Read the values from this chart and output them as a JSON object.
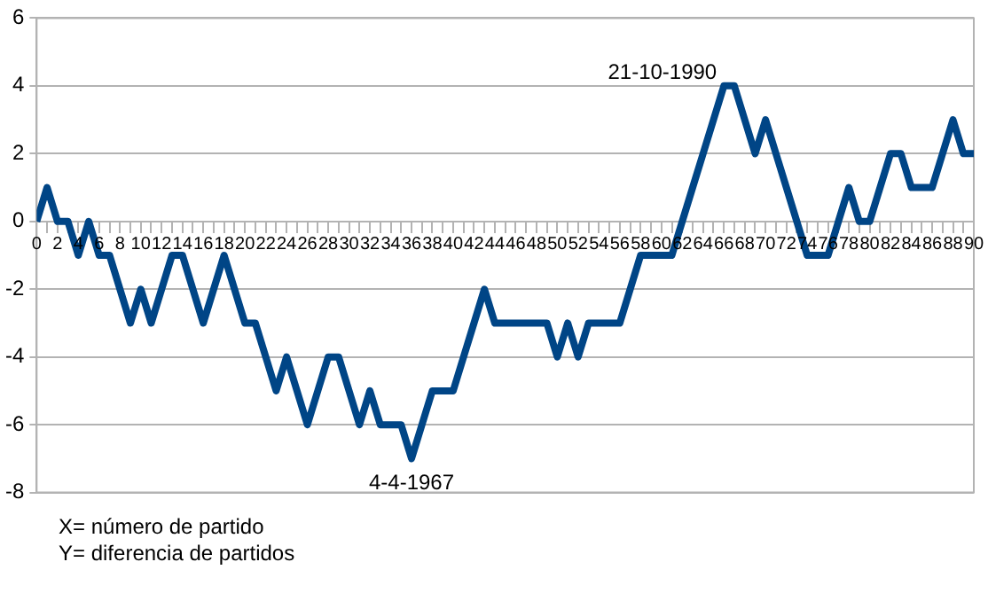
{
  "chart_data": {
    "type": "line",
    "x": [
      0,
      1,
      2,
      3,
      4,
      5,
      6,
      7,
      8,
      9,
      10,
      11,
      12,
      13,
      14,
      15,
      16,
      17,
      18,
      19,
      20,
      21,
      22,
      23,
      24,
      25,
      26,
      27,
      28,
      29,
      30,
      31,
      32,
      33,
      34,
      35,
      36,
      37,
      38,
      39,
      40,
      41,
      42,
      43,
      44,
      45,
      46,
      47,
      48,
      49,
      50,
      51,
      52,
      53,
      54,
      55,
      56,
      57,
      58,
      59,
      60,
      61,
      62,
      63,
      64,
      65,
      66,
      67,
      68,
      69,
      70,
      71,
      72,
      73,
      74,
      75,
      76,
      77,
      78,
      79,
      80,
      81,
      82,
      83,
      84,
      85,
      86,
      87,
      88,
      89,
      90
    ],
    "series": [
      {
        "color": "#004586",
        "values": [
          0,
          1,
          0,
          0,
          -1,
          0,
          -1,
          -1,
          -2,
          -3,
          -2,
          -3,
          -2,
          -1,
          -1,
          -2,
          -3,
          -2,
          -1,
          -2,
          -3,
          -3,
          -4,
          -5,
          -4,
          -5,
          -6,
          -5,
          -4,
          -4,
          -5,
          -6,
          -5,
          -6,
          -6,
          -6,
          -7,
          -6,
          -5,
          -5,
          -5,
          -4,
          -3,
          -2,
          -3,
          -3,
          -3,
          -3,
          -3,
          -3,
          -4,
          -3,
          -4,
          -3,
          -3,
          -3,
          -3,
          -2,
          -1,
          -1,
          -1,
          -1,
          0,
          1,
          2,
          3,
          4,
          4,
          3,
          2,
          3,
          2,
          1,
          0,
          -1,
          -1,
          -1,
          0,
          1,
          0,
          0,
          1,
          2,
          2,
          1,
          1,
          1,
          2,
          3,
          2,
          2
        ]
      }
    ],
    "xlim": [
      0,
      90
    ],
    "xticks": [
      0,
      {
        "value": 1,
        "label": null
      },
      2,
      {
        "value": 3,
        "label": null
      },
      4,
      {
        "value": 5,
        "label": null
      },
      6,
      {
        "value": 7,
        "label": null
      },
      8,
      {
        "value": 9,
        "label": null
      },
      10,
      {
        "value": 11,
        "label": null
      },
      12,
      {
        "value": 13,
        "label": null
      },
      14,
      {
        "value": 15,
        "label": null
      },
      16,
      {
        "value": 17,
        "label": null
      },
      18,
      {
        "value": 19,
        "label": null
      },
      20,
      {
        "value": 21,
        "label": null
      },
      22,
      {
        "value": 23,
        "label": null
      },
      24,
      {
        "value": 25,
        "label": null
      },
      26,
      {
        "value": 27,
        "label": null
      },
      28,
      {
        "value": 29,
        "label": null
      },
      30,
      {
        "value": 31,
        "label": null
      },
      32,
      {
        "value": 33,
        "label": null
      },
      34,
      {
        "value": 35,
        "label": null
      },
      36,
      {
        "value": 37,
        "label": null
      },
      38,
      {
        "value": 39,
        "label": null
      },
      40,
      {
        "value": 41,
        "label": null
      },
      42,
      {
        "value": 43,
        "label": null
      },
      44,
      {
        "value": 45,
        "label": null
      },
      46,
      {
        "value": 47,
        "label": null
      },
      48,
      {
        "value": 49,
        "label": null
      },
      50,
      {
        "value": 51,
        "label": null
      },
      52,
      {
        "value": 53,
        "label": null
      },
      54,
      {
        "value": 55,
        "label": null
      },
      56,
      {
        "value": 57,
        "label": null
      },
      58,
      {
        "value": 59,
        "label": null
      },
      60,
      {
        "value": 61,
        "label": null
      },
      62,
      {
        "value": 63,
        "label": null
      },
      64,
      {
        "value": 65,
        "label": null
      },
      66,
      {
        "value": 67,
        "label": null
      },
      68,
      {
        "value": 69,
        "label": null
      },
      70,
      {
        "value": 71,
        "label": null
      },
      72,
      {
        "value": 73,
        "label": null
      },
      74,
      {
        "value": 75,
        "label": null
      },
      76,
      {
        "value": 77,
        "label": null
      },
      78,
      {
        "value": 79,
        "label": null
      },
      80,
      {
        "value": 81,
        "label": null
      },
      82,
      {
        "value": 83,
        "label": null
      },
      84,
      {
        "value": 85,
        "label": null
      },
      86,
      {
        "value": 87,
        "label": null
      },
      88,
      {
        "value": 89,
        "label": null
      },
      90
    ],
    "ylim": [
      -8,
      6
    ],
    "yticks": [
      -8,
      -6,
      -4,
      -2,
      0,
      2,
      4,
      6
    ],
    "grid": "y",
    "legend": false,
    "marker": "none",
    "line_style": "solid",
    "annotations": [
      {
        "text": "21-10-1990",
        "x": 66,
        "y": 4
      },
      {
        "text": "4-4-1967",
        "x": 36,
        "y": -7
      },
      "X= número de partido",
      "Y= diferencia de partidos"
    ]
  }
}
